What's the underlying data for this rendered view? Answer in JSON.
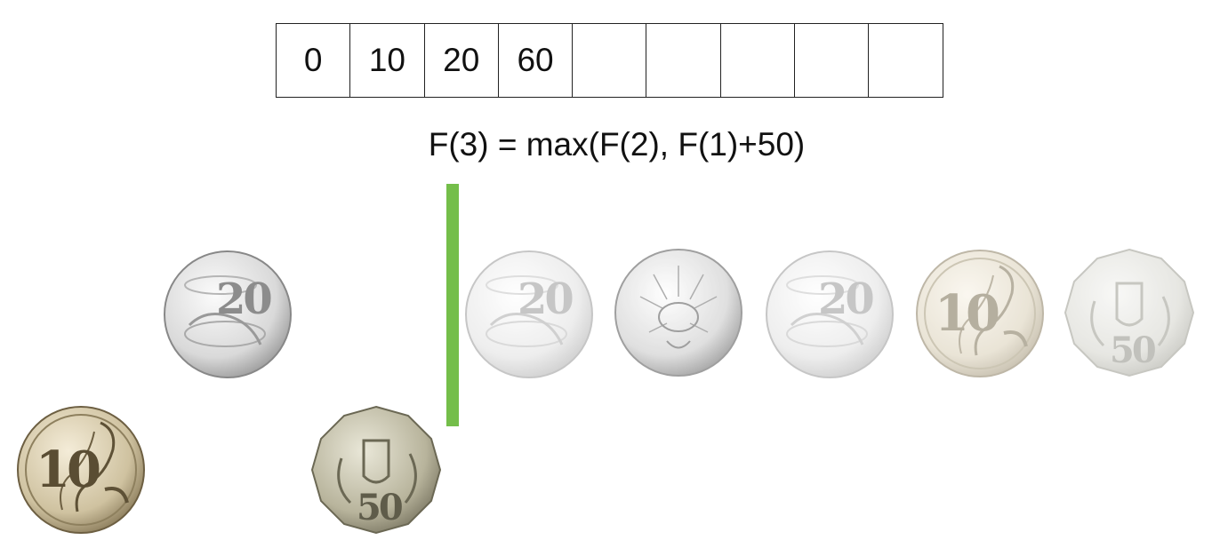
{
  "dp_table": {
    "cells": [
      "0",
      "10",
      "20",
      "60",
      "",
      "",
      "",
      "",
      ""
    ]
  },
  "formula": "F(3) = max(F(2), F(1)+50)",
  "divider_color": "#74be4a",
  "coins": [
    {
      "id": "coin-10c-selected",
      "label": "10",
      "type": "10c lyrebird",
      "state": "selected"
    },
    {
      "id": "coin-20c-processed",
      "label": "20",
      "type": "20c platypus",
      "state": "processed"
    },
    {
      "id": "coin-50c-current",
      "label": "50",
      "type": "50c coat of arms",
      "state": "selected"
    },
    {
      "id": "coin-20c-pending",
      "label": "20",
      "type": "20c platypus",
      "state": "pending"
    },
    {
      "id": "coin-5c-pending",
      "label": "",
      "type": "5c echidna",
      "state": "pending"
    },
    {
      "id": "coin-20c-pending-2",
      "label": "20",
      "type": "20c platypus",
      "state": "pending"
    },
    {
      "id": "coin-10c-pending",
      "label": "10",
      "type": "10c lyrebird",
      "state": "pending"
    },
    {
      "id": "coin-50c-pending",
      "label": "50",
      "type": "50c coat of arms",
      "state": "pending"
    }
  ]
}
